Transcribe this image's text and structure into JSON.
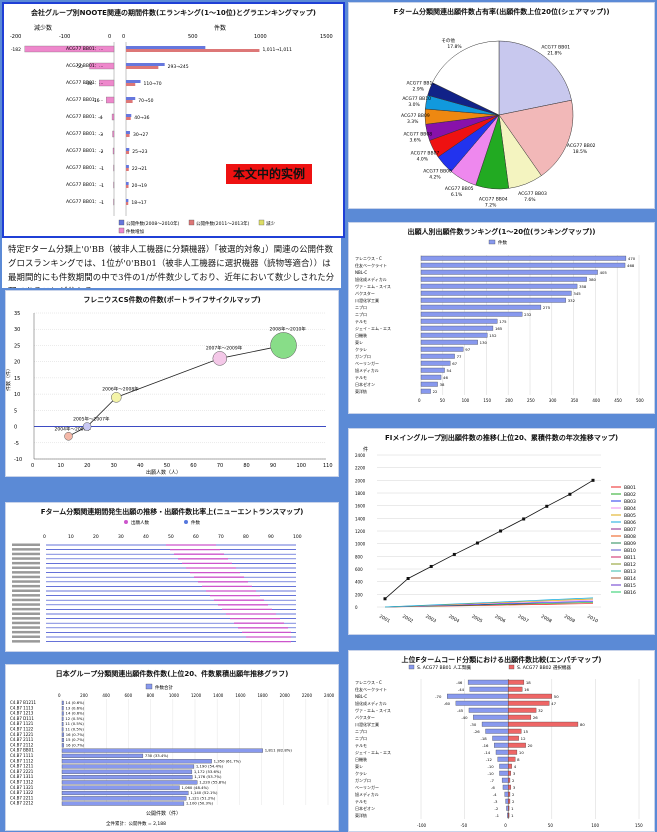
{
  "panel1": {
    "title": "会社グループ別NOOTE関連の期間件数(エランキング(1～10位)とグラエンキングマップ)",
    "left_header": "減少数",
    "right_header": "件数",
    "stamp": "本文中的实例",
    "left_ticks": [
      "-200",
      "-100",
      "0"
    ],
    "right_ticks": [
      "0",
      "500",
      "1000",
      "1500"
    ],
    "rows": [
      {
        "label": "ACG77 BB01：...",
        "decrease": -182,
        "a": 601,
        "b": 1011,
        "alabel": "1,011→1,011"
      },
      {
        "label": "ACG77 BB01：...",
        "decrease": -50,
        "a": 293,
        "b": 245,
        "alabel": "293→245"
      },
      {
        "label": "ACG77 BB01：...",
        "decrease": -30,
        "a": 110,
        "b": 70,
        "alabel": "110→70"
      },
      {
        "label": "ACG77 BB01：...",
        "decrease": -16,
        "a": 70,
        "b": 50,
        "alabel": "70→50"
      },
      {
        "label": "ACG77 BB01：...",
        "decrease": -4,
        "a": 40,
        "b": 36,
        "alabel": "40→36"
      },
      {
        "label": "ACG77 BB01：...",
        "decrease": -3,
        "a": 30,
        "b": 27,
        "alabel": "30→27"
      },
      {
        "label": "ACG77 BB01：...",
        "decrease": -2,
        "a": 25,
        "b": 23,
        "alabel": "25→23"
      },
      {
        "label": "ACG77 BB01：...",
        "decrease": -1,
        "a": 22,
        "b": 21,
        "alabel": "22→21"
      },
      {
        "label": "ACG77 BB01：...",
        "decrease": -1,
        "a": 20,
        "b": 19,
        "alabel": "20→19"
      },
      {
        "label": "ACG77 BB01：...",
        "decrease": -1,
        "a": 18,
        "b": 17,
        "alabel": "18→17"
      }
    ],
    "legend": [
      "公開件数(2008～2010年)",
      "公開件数(2011～2013年)",
      "減少",
      "件数増加"
    ]
  },
  "paragraph": "特定Fターム分類上'0'BB（被非人工機器に分類機器）「被選的対象」）関連の公開件数グロスランキングでは、1位が'0'BB01（被非人工機器に選択機器（読物等適合））は最期間的にも件数期間の中で3件の1/が件数少しており、近年において数少しされた分野であることが分かる。",
  "panel2": {
    "title": "フレニウスCS件数の件数(ポートライフサイクルマップ)",
    "xlabel": "出願人数（人）",
    "ylabel": "件数（件）",
    "y_ticks": [
      -10,
      -5,
      0,
      5,
      10,
      15,
      20,
      25,
      30,
      35
    ],
    "x_ticks": [
      0,
      10,
      20,
      30,
      40,
      50,
      60,
      70,
      80,
      90,
      100,
      110
    ],
    "points": [
      {
        "x": 13,
        "y": -3,
        "r": 4,
        "label": "2004年～2006年"
      },
      {
        "x": 20,
        "y": 0,
        "r": 4,
        "label": "2005年～2007年"
      },
      {
        "x": 31,
        "y": 9,
        "r": 5,
        "label": "2006年～2008年"
      },
      {
        "x": 70,
        "y": 21,
        "r": 7,
        "label": "2007年～2009年"
      },
      {
        "x": 94,
        "y": 25,
        "r": 13,
        "label": "2008年～2010年"
      }
    ]
  },
  "panel3": {
    "title": "Fターム分類関連期間発生出願の推移・出願件数比率上(ニューエントランスマップ)",
    "legend": [
      "出願人数",
      "件数"
    ],
    "ticks": [
      "0",
      "10",
      "20",
      "30",
      "40",
      "50",
      "60",
      "70",
      "80",
      "90",
      "100"
    ],
    "rows": 22
  },
  "panel4": {
    "title": "日本グループ分類関連出願件数件数(上位20、件数累積出願年推移グラフ)",
    "legend": "件数合計",
    "ticks": [
      "0",
      "200",
      "400",
      "600",
      "800",
      "1000",
      "1200",
      "1400",
      "1600",
      "1800",
      "2000",
      "2200",
      "2400"
    ],
    "xlabel": "公開件数（件）",
    "footer": "全件累計：公開件数 = 2,188",
    "labels": [
      "C4.B7 B1211",
      "C4.B7 1113",
      "C4.B7 1213",
      "C4.B7 D111",
      "C4.B7 1121",
      "C4.B7 1122",
      "C4.B7 1221",
      "C4.B7 2111",
      "C4.B7 2112",
      "C4.B7 BB01",
      "C4.B7 1111",
      "C4.B7 1112",
      "C4.B7 1211",
      "C4.B7 2221",
      "C4.B7 1311",
      "C4.B7 1312",
      "C4.B7 1321",
      "C4.B7 1322",
      "C4.B7 2211",
      "C4.B7 2212"
    ],
    "values": [
      14,
      13,
      14,
      12,
      11,
      11,
      16,
      15,
      16,
      1811,
      730,
      1350,
      1190,
      1172,
      1176,
      1220,
      1060,
      1140,
      1121,
      1100
    ],
    "value_labels": [
      "14 (0.6%)",
      "13 (0.6%)",
      "14 (0.6%)",
      "12 (0.5%)",
      "11 (0.5%)",
      "11 (0.5%)",
      "16 (0.7%)",
      "15 (0.7%)",
      "16 (0.7%)",
      "1,811 (82.8%)",
      "730 (33.4%)",
      "1,350 (61.7%)",
      "1,190 (54.4%)",
      "1,172 (53.6%)",
      "1,176 (53.7%)",
      "1,220 (55.8%)",
      "1,060 (48.4%)",
      "1,140 (52.1%)",
      "1,121 (51.2%)",
      "1,100 (50.3%)"
    ]
  },
  "panel5": {
    "title": "Fターム分類関連出願件数占有率(出願件数上位20位(シェアマップ))",
    "slices": [
      {
        "label": "ACG77 BB01",
        "value": 21.8,
        "color": "#c8c8ee"
      },
      {
        "label": "ACG77 BB02",
        "value": 18.5,
        "color": "#f2b8b8"
      },
      {
        "label": "ACG77 BB03",
        "value": 7.6,
        "color": "#f4f4c0"
      },
      {
        "label": "ACG77 BB04",
        "value": 7.2,
        "color": "#22aa22"
      },
      {
        "label": "ACG77 BB05",
        "value": 6.1,
        "color": "#ee88ee"
      },
      {
        "label": "ACG77 BB06",
        "value": 4.2,
        "color": "#2233ee"
      },
      {
        "label": "ACG77 BB07",
        "value": 4.0,
        "color": "#ee1111"
      },
      {
        "label": "ACG77 BB08",
        "value": 3.6,
        "color": "#8811aa"
      },
      {
        "label": "ACG77 BB09",
        "value": 3.3,
        "color": "#ee8811"
      },
      {
        "label": "ACG77 BB10",
        "value": 3.0,
        "color": "#1199dd"
      },
      {
        "label": "ACG77 BB11",
        "value": 2.9,
        "color": "#112288"
      },
      {
        "label": "その他",
        "value": 17.8,
        "color": "#ffffff"
      }
    ]
  },
  "panel6": {
    "title": "出願人別出願件数ランキング(1～20位(ランキングマップ))",
    "legend": "件数",
    "ticks": [
      "0",
      "50",
      "100",
      "150",
      "200",
      "250",
      "300",
      "350",
      "400",
      "450",
      "500"
    ],
    "labels": [
      "フレニウス・C",
      "住友ベークライト",
      "NBL-C",
      "旭化成メディカル",
      "ヴァ・エム・スイス",
      "バクスター",
      "川澄化学工業",
      "ニプロ",
      "ニプロ",
      "テルモ",
      "ジェイ・エム・エス",
      "日機装",
      "東レ",
      "クラレ",
      "ガンブロ",
      "ベーリンガー",
      "旭メディカル",
      "テルモ",
      "日本ゼオン",
      "東洋紡"
    ],
    "values": [
      470,
      468,
      405,
      380,
      358,
      345,
      332,
      275,
      232,
      175,
      165,
      152,
      130,
      97,
      77,
      67,
      54,
      46,
      38,
      22
    ]
  },
  "panel7": {
    "title": "FIメイングループ別出願件数の推移(上位20、累積件数の年次推移マップ)",
    "ylabel": "件",
    "y_ticks": [
      0,
      200,
      400,
      600,
      800,
      1000,
      1200,
      1400,
      1600,
      1800,
      2000,
      2200,
      2400
    ],
    "x_ticks": [
      "2001",
      "2002",
      "2003",
      "2004",
      "2005",
      "2006",
      "2007",
      "2008",
      "2009",
      "2010"
    ],
    "main_series": [
      130,
      450,
      640,
      830,
      1010,
      1200,
      1390,
      1590,
      1780,
      2000
    ],
    "legend": [
      "BB01",
      "BB02",
      "BB03",
      "BB04",
      "BB05",
      "BB06",
      "BB07",
      "BB08",
      "BB09",
      "BB10",
      "BB11",
      "BB12",
      "BB13",
      "BB14",
      "BB15",
      "BB16"
    ]
  },
  "panel8": {
    "title": "上位Fタームコード分類における出願件数比較(エンパチマップ)",
    "legend": [
      "S. ACG77 BB01 人工腎臓",
      "S. ACG77 BB02 選択機器"
    ],
    "ticks": [
      "-100",
      "-50",
      "0",
      "50",
      "100",
      "150"
    ],
    "labels": [
      "フレニウス・C",
      "住友ベークライト",
      "NBL-C",
      "旭化成メディカル",
      "ヴァ・エム・スイス",
      "バクスター",
      "川澄化学工業",
      "ニプロ",
      "ニプロ",
      "テルモ",
      "ジェイ・エム・エス",
      "日機装",
      "東レ",
      "クラレ",
      "ガンブロ",
      "ベーリンガー",
      "旭メディカル",
      "テルモ",
      "日本ゼオン",
      "東洋紡"
    ],
    "blue": [
      -46,
      -44,
      -70,
      -60,
      -45,
      -40,
      -30,
      -26,
      -18,
      -16,
      -14,
      -12,
      -10,
      -10,
      -7,
      -6,
      -4,
      -3,
      -2,
      -1
    ],
    "red": [
      18,
      16,
      50,
      47,
      32,
      26,
      80,
      15,
      12,
      20,
      10,
      8,
      4,
      3,
      2,
      3,
      2,
      2,
      1,
      1
    ]
  },
  "chart_data": [
    {
      "type": "bar",
      "title": "会社グループ別NOOTE関連の期間件数(エランキング(1～10位)とグラエンキングマップ)"
    },
    {
      "type": "scatter",
      "title": "フレニウスCS件数の件数(ポートライフサイクルマップ)"
    },
    {
      "type": "pie",
      "title": "Fターム分類関連出願件数占有率(出願件数上位20位(シェアマップ))"
    },
    {
      "type": "bar",
      "title": "出願人別出願件数ランキング(1～20位(ランキングマップ))"
    },
    {
      "type": "line",
      "title": "FIメイングループ別出願件数の推移(上位20、累積件数の年次推移マップ)"
    },
    {
      "type": "bar",
      "title": "上位Fタームコード分類における出願件数比較(エンパチマップ)"
    }
  ]
}
